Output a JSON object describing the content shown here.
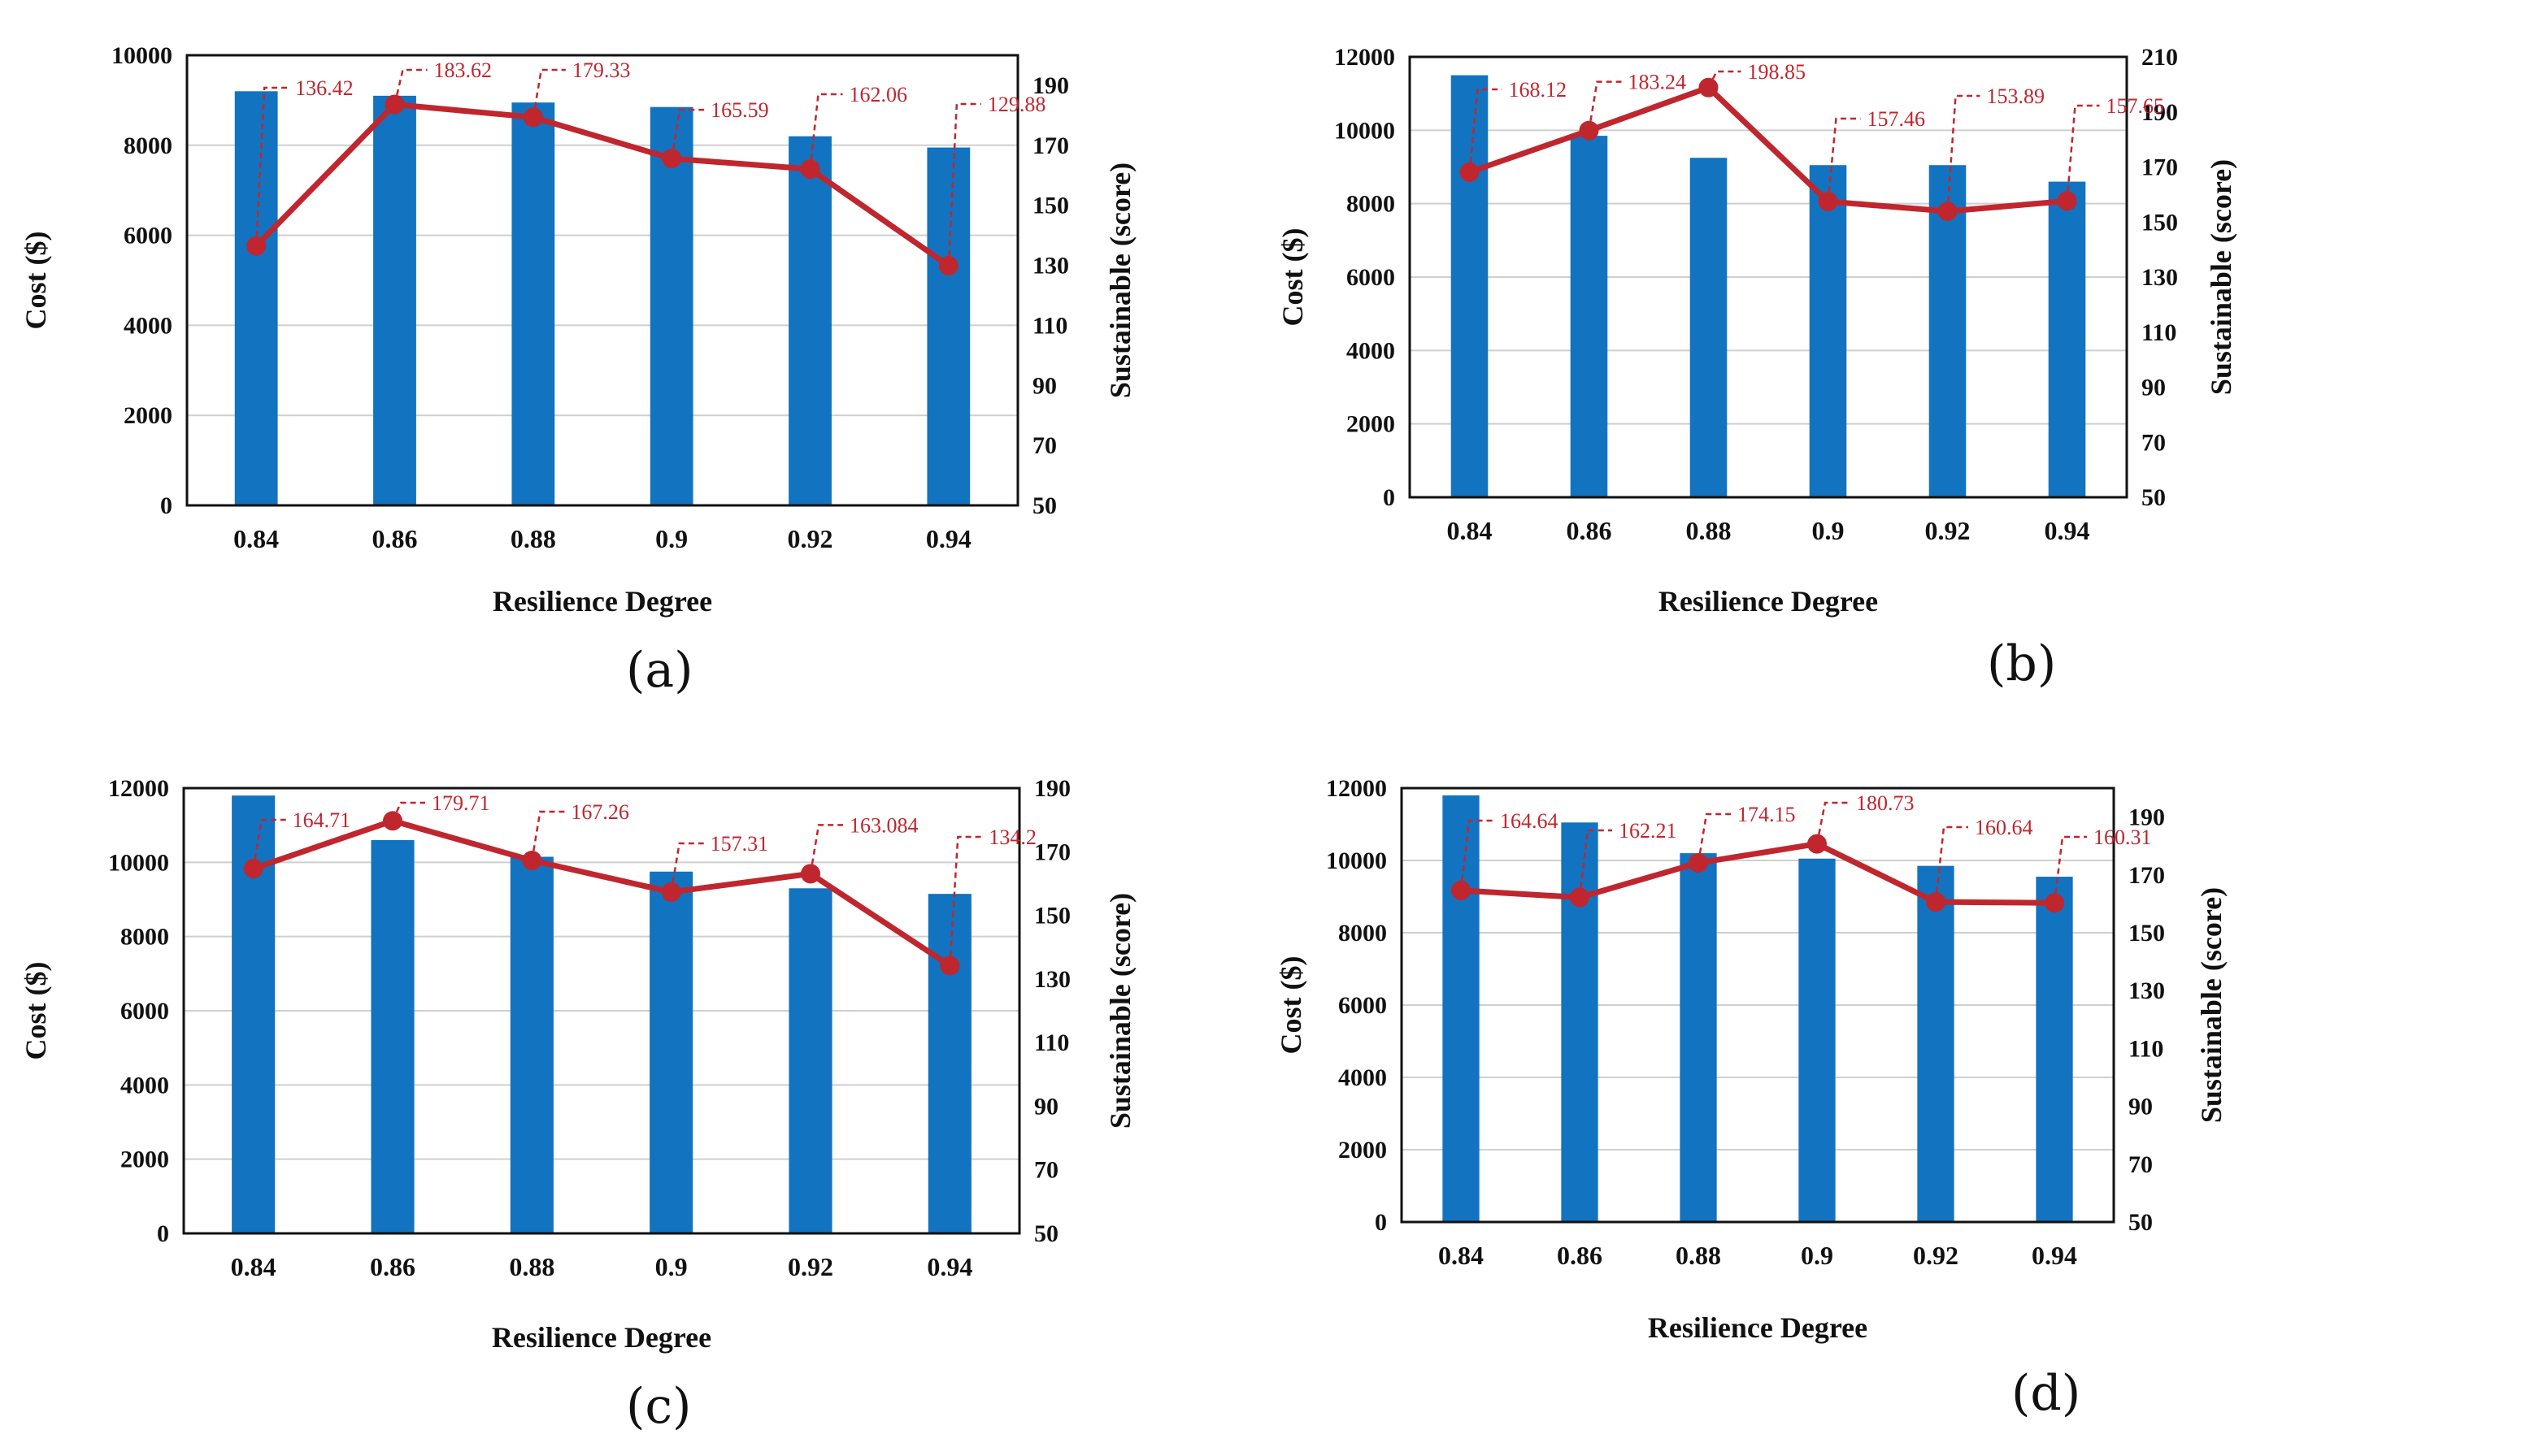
{
  "colors": {
    "bar": "#1273c0",
    "line": "#c0262e",
    "grid": "#cfcfcf",
    "axis": "#111111"
  },
  "chart_data": [
    {
      "type": "bar+line",
      "panel_label": "(a)",
      "xlabel": "Resilience Degree",
      "ylabel": "Cost ($)",
      "y2label": "Sustainable  (score)",
      "categories": [
        "0.84",
        "0.86",
        "0.88",
        "0.9",
        "0.92",
        "0.94"
      ],
      "series": [
        {
          "type": "bar",
          "axis": "left",
          "values": [
            9200,
            9100,
            8950,
            8850,
            8200,
            7950
          ]
        },
        {
          "type": "line",
          "axis": "right",
          "values": [
            136.42,
            183.62,
            179.33,
            165.59,
            162.06,
            129.88
          ]
        }
      ],
      "data_labels": [
        "136.42",
        "183.62",
        "179.33",
        "165.59",
        "162.06",
        "129.88"
      ],
      "ylim": [
        0,
        10000
      ],
      "yticks": [
        "0",
        "2000",
        "4000",
        "6000",
        "8000",
        "10000"
      ],
      "y2lim": [
        50,
        200
      ],
      "y2ticks": [
        "50",
        "70",
        "90",
        "110",
        "130",
        "150",
        "170",
        "190"
      ],
      "grid": true
    },
    {
      "type": "bar+line",
      "panel_label": "(b)",
      "xlabel": "Resilience Degree",
      "ylabel": "Cost ($)",
      "y2label": "Sustainable  (score)",
      "categories": [
        "0.84",
        "0.86",
        "0.88",
        "0.9",
        "0.92",
        "0.94"
      ],
      "series": [
        {
          "type": "bar",
          "axis": "left",
          "values": [
            11500,
            9850,
            9250,
            9050,
            9050,
            8600
          ]
        },
        {
          "type": "line",
          "axis": "right",
          "values": [
            168.12,
            183.24,
            198.85,
            157.46,
            153.89,
            157.65
          ]
        }
      ],
      "data_labels": [
        "168.12",
        "183.24",
        "198.85",
        "157.46",
        "153.89",
        "157.65"
      ],
      "ylim": [
        0,
        12000
      ],
      "yticks": [
        "0",
        "2000",
        "4000",
        "6000",
        "8000",
        "10000",
        "12000"
      ],
      "y2lim": [
        50,
        210
      ],
      "y2ticks": [
        "50",
        "70",
        "90",
        "110",
        "130",
        "150",
        "170",
        "190",
        "210"
      ],
      "grid": true
    },
    {
      "type": "bar+line",
      "panel_label": "(c)",
      "xlabel": "Resilience Degree",
      "ylabel": "Cost ($)",
      "y2label": "Sustainable  (score)",
      "categories": [
        "0.84",
        "0.86",
        "0.88",
        "0.9",
        "0.92",
        "0.94"
      ],
      "series": [
        {
          "type": "bar",
          "axis": "left",
          "values": [
            11800,
            10600,
            10150,
            9750,
            9300,
            9150
          ]
        },
        {
          "type": "line",
          "axis": "right",
          "values": [
            164.71,
            179.71,
            167.26,
            157.31,
            163.084,
            134.2
          ]
        }
      ],
      "data_labels": [
        "164.71",
        "179.71",
        "167.26",
        "157.31",
        "163.084",
        "134.2"
      ],
      "ylim": [
        0,
        12000
      ],
      "yticks": [
        "0",
        "2000",
        "4000",
        "6000",
        "8000",
        "10000",
        "12000"
      ],
      "y2lim": [
        50,
        190
      ],
      "y2ticks": [
        "50",
        "70",
        "90",
        "110",
        "130",
        "150",
        "170",
        "190"
      ],
      "grid": true
    },
    {
      "type": "bar+line",
      "panel_label": "(d)",
      "xlabel": "Resilience Degree",
      "ylabel": "Cost ($)",
      "y2label": "Sustainable  (score)",
      "categories": [
        "0.84",
        "0.86",
        "0.88",
        "0.9",
        "0.92",
        "0.94"
      ],
      "series": [
        {
          "type": "bar",
          "axis": "left",
          "values": [
            11800,
            11050,
            10200,
            10050,
            9850,
            9550
          ]
        },
        {
          "type": "line",
          "axis": "right",
          "values": [
            164.64,
            162.21,
            174.15,
            180.73,
            160.64,
            160.31
          ]
        }
      ],
      "data_labels": [
        "164.64",
        "162.21",
        "174.15",
        "180.73",
        "160.64",
        "160.31"
      ],
      "ylim": [
        0,
        12000
      ],
      "yticks": [
        "0",
        "2000",
        "4000",
        "6000",
        "8000",
        "10000",
        "12000"
      ],
      "y2lim": [
        50,
        200
      ],
      "y2ticks": [
        "50",
        "70",
        "90",
        "110",
        "130",
        "150",
        "170",
        "190"
      ],
      "grid": true
    }
  ]
}
